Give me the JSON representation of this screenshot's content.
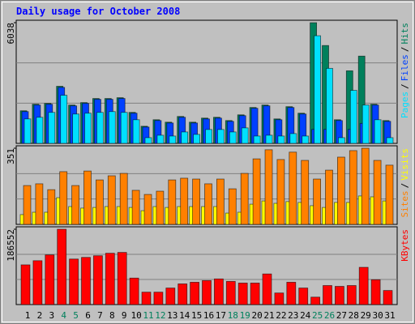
{
  "chart_data": [
    {
      "type": "bar",
      "title": "Daily usage for October 2008",
      "legend_separator": "/",
      "ylim": [
        0,
        6038
      ],
      "yticks": [
        6038
      ],
      "series": [
        {
          "name": "Pages",
          "color": "#00e0ff",
          "values": [
            1224,
            1306,
            1550,
            2407,
            1469,
            1510,
            1550,
            1591,
            1550,
            1183,
            286,
            408,
            367,
            571,
            449,
            694,
            694,
            571,
            775,
            367,
            408,
            367,
            490,
            367,
            5385,
            3754,
            286,
            2652,
            1918,
            1183,
            286
          ]
        },
        {
          "name": "Files",
          "color": "#0040ff",
          "values": [
            1591,
            1917,
            1958,
            2800,
            1877,
            2000,
            2204,
            2204,
            2245,
            1510,
            817,
            1142,
            1020,
            1306,
            1020,
            1224,
            1265,
            1101,
            1387,
            1755,
            1877,
            1183,
            1795,
            1469,
            700,
            700,
            1142,
            700,
            1000,
            1918,
            1101
          ]
        },
        {
          "name": "Hits",
          "color": "#00805c",
          "values": [
            1632,
            1958,
            1999,
            2856,
            1917,
            2040,
            2244,
            2244,
            2285,
            1550,
            857,
            1183,
            1061,
            1346,
            1061,
            1265,
            1306,
            1142,
            1428,
            1795,
            1917,
            1224,
            1836,
            1510,
            6038,
            4896,
            1183,
            3631,
            4366,
            1958,
            1142
          ]
        }
      ]
    },
    {
      "type": "bar",
      "legend_separator": "/",
      "ylim": [
        0,
        351
      ],
      "yticks": [
        351
      ],
      "series": [
        {
          "name": "Sites",
          "color": "#ff8000",
          "values": [
            179,
            187,
            160,
            243,
            179,
            246,
            205,
            224,
            235,
            157,
            138,
            153,
            205,
            213,
            209,
            187,
            209,
            164,
            235,
            302,
            344,
            299,
            333,
            295,
            209,
            250,
            310,
            340,
            351,
            295,
            273
          ]
        },
        {
          "name": "Visits",
          "color": "#ffff00",
          "values": [
            45,
            56,
            56,
            123,
            82,
            75,
            78,
            82,
            82,
            78,
            63,
            82,
            78,
            82,
            82,
            82,
            82,
            52,
            56,
            93,
            108,
            97,
            105,
            101,
            86,
            78,
            101,
            101,
            131,
            127,
            108
          ]
        }
      ]
    },
    {
      "type": "bar",
      "ylim": [
        0,
        186552
      ],
      "yticks": [
        186552
      ],
      "categories": [
        "1",
        "2",
        "3",
        "4",
        "5",
        "6",
        "7",
        "8",
        "9",
        "10",
        "11",
        "12",
        "13",
        "14",
        "15",
        "16",
        "17",
        "18",
        "19",
        "20",
        "21",
        "22",
        "23",
        "24",
        "25",
        "26",
        "27",
        "28",
        "29",
        "30",
        "31"
      ],
      "category_colors": [
        "#000000",
        "#000000",
        "#000000",
        "#00805c",
        "#00805c",
        "#000000",
        "#000000",
        "#000000",
        "#000000",
        "#000000",
        "#00805c",
        "#00805c",
        "#000000",
        "#000000",
        "#000000",
        "#000000",
        "#000000",
        "#00805c",
        "#00805c",
        "#000000",
        "#000000",
        "#000000",
        "#000000",
        "#000000",
        "#00805c",
        "#00805c",
        "#000000",
        "#000000",
        "#000000",
        "#000000",
        "#000000"
      ],
      "series": [
        {
          "name": "KBytes",
          "color": "#ff0000",
          "values": [
            98400,
            108650,
            123000,
            186552,
            112750,
            116850,
            120950,
            127100,
            129150,
            65600,
            30750,
            30750,
            41000,
            51250,
            55350,
            59450,
            63550,
            57400,
            53300,
            53300,
            75850,
            28700,
            55350,
            41000,
            18450,
            47150,
            45100,
            47150,
            92250,
            61500,
            34850
          ]
        }
      ]
    }
  ]
}
